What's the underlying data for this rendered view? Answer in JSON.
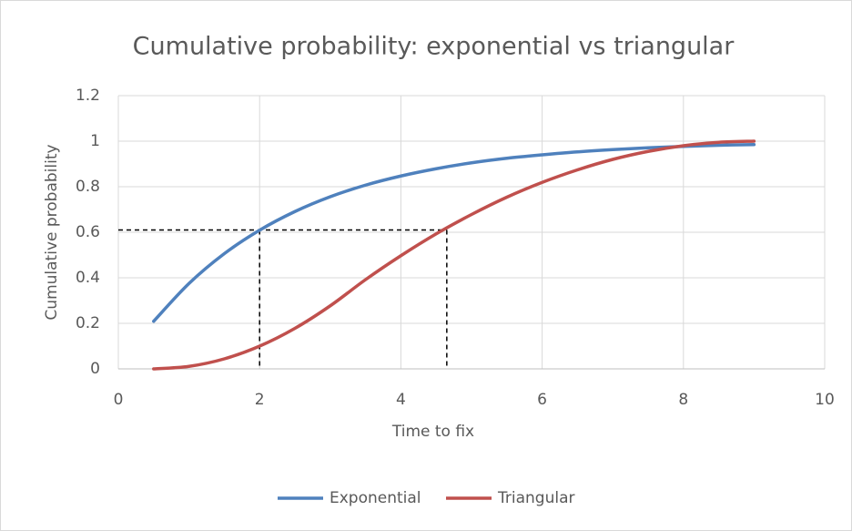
{
  "chart_data": {
    "type": "line",
    "title": "Cumulative probability: exponential vs triangular",
    "x_label": "Time to fix",
    "y_label": "Cumulative probability",
    "x": [
      0.5,
      1,
      1.5,
      2,
      2.5,
      3,
      3.5,
      4,
      4.5,
      5,
      5.5,
      6,
      6.5,
      7,
      7.5,
      8,
      8.5,
      9
    ],
    "series": [
      {
        "name": "Exponential",
        "color": "#4f81bd",
        "values": [
          0.209,
          0.375,
          0.506,
          0.609,
          0.691,
          0.756,
          0.807,
          0.847,
          0.879,
          0.905,
          0.925,
          0.94,
          0.953,
          0.963,
          0.971,
          0.977,
          0.982,
          0.985
        ]
      },
      {
        "name": "Triangular",
        "color": "#c0504d",
        "values": [
          0,
          0.011,
          0.044,
          0.1,
          0.178,
          0.277,
          0.392,
          0.497,
          0.593,
          0.678,
          0.754,
          0.819,
          0.874,
          0.92,
          0.955,
          0.98,
          0.995,
          1.0
        ]
      }
    ],
    "guides": {
      "y": 0.61,
      "x": [
        2,
        4.65
      ]
    },
    "xlim": [
      0,
      10
    ],
    "xticks": [
      0,
      2,
      4,
      6,
      8,
      10
    ],
    "ylim": [
      0,
      1.2
    ],
    "yticks": [
      0,
      0.2,
      0.4,
      0.6,
      0.8,
      1,
      1.2
    ],
    "grid": true,
    "legend": "bottom"
  }
}
